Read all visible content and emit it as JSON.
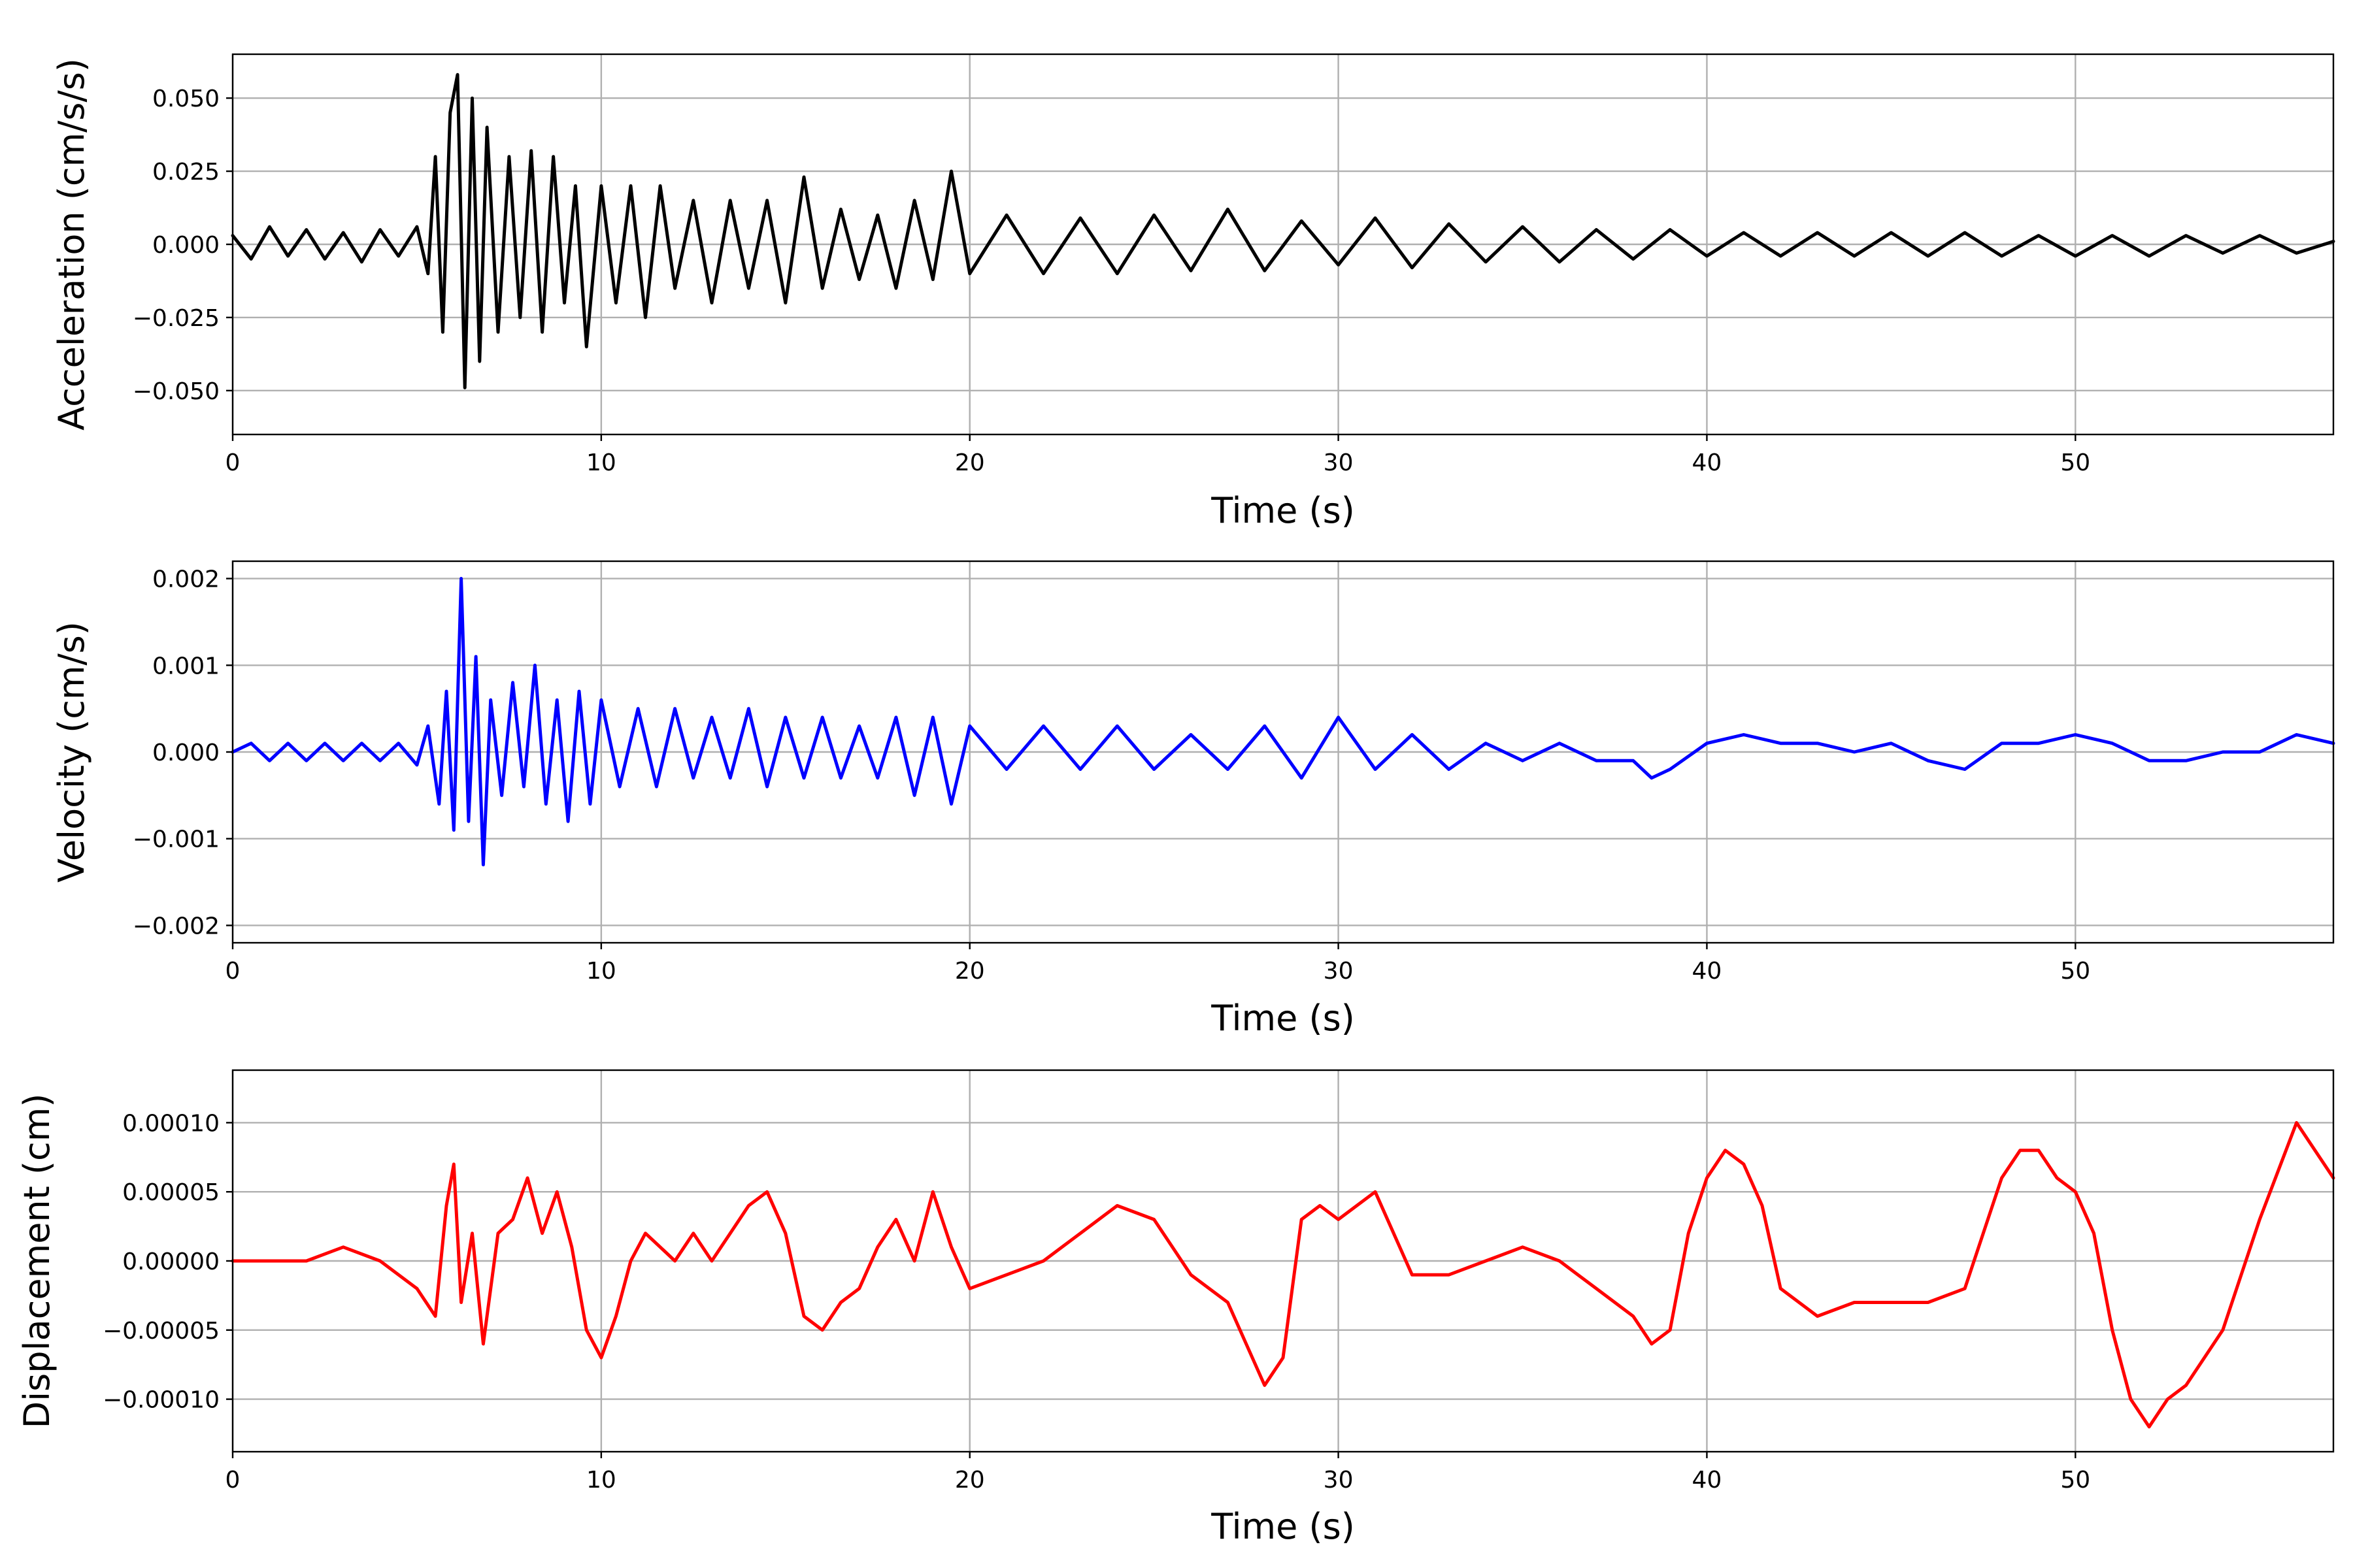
{
  "chart_data": [
    {
      "type": "line",
      "xlabel": "Time (s)",
      "ylabel": "Acceleration (cm/s/s)",
      "xlim": [
        0,
        57
      ],
      "ylim": [
        -0.065,
        0.065
      ],
      "xticks": [
        0,
        10,
        20,
        30,
        40,
        50
      ],
      "xtick_labels": [
        "0",
        "10",
        "20",
        "30",
        "40",
        "50"
      ],
      "yticks": [
        -0.05,
        -0.025,
        0,
        0.025,
        0.05
      ],
      "ytick_labels": [
        "−0.050",
        "−0.025",
        "0.000",
        "0.025",
        "0.050"
      ],
      "grid": true,
      "series": [
        {
          "color": "#000000",
          "x": [
            0,
            0.5,
            1,
            1.5,
            2,
            2.5,
            3,
            3.5,
            4,
            4.5,
            5,
            5.3,
            5.5,
            5.7,
            5.9,
            6.1,
            6.3,
            6.5,
            6.7,
            6.9,
            7.2,
            7.5,
            7.8,
            8.1,
            8.4,
            8.7,
            9,
            9.3,
            9.6,
            10,
            10.4,
            10.8,
            11.2,
            11.6,
            12,
            12.5,
            13,
            13.5,
            14,
            14.5,
            15,
            15.5,
            16,
            16.5,
            17,
            17.5,
            18,
            18.5,
            19,
            19.5,
            20,
            21,
            22,
            23,
            24,
            25,
            26,
            27,
            28,
            29,
            30,
            31,
            32,
            33,
            34,
            35,
            36,
            37,
            38,
            39,
            40,
            41,
            42,
            43,
            44,
            45,
            46,
            47,
            48,
            49,
            50,
            51,
            52,
            53,
            54,
            55,
            56,
            57
          ],
          "y": [
            0.003,
            -0.005,
            0.006,
            -0.004,
            0.005,
            -0.005,
            0.004,
            -0.006,
            0.005,
            -0.004,
            0.006,
            -0.01,
            0.03,
            -0.03,
            0.045,
            0.058,
            -0.049,
            0.05,
            -0.04,
            0.04,
            -0.03,
            0.03,
            -0.025,
            0.032,
            -0.03,
            0.03,
            -0.02,
            0.02,
            -0.035,
            0.02,
            -0.02,
            0.02,
            -0.025,
            0.02,
            -0.015,
            0.015,
            -0.02,
            0.015,
            -0.015,
            0.015,
            -0.02,
            0.023,
            -0.015,
            0.012,
            -0.012,
            0.01,
            -0.015,
            0.015,
            -0.012,
            0.025,
            -0.01,
            0.01,
            -0.01,
            0.009,
            -0.01,
            0.01,
            -0.009,
            0.012,
            -0.009,
            0.008,
            -0.007,
            0.009,
            -0.008,
            0.007,
            -0.006,
            0.006,
            -0.006,
            0.005,
            -0.005,
            0.005,
            -0.004,
            0.004,
            -0.004,
            0.004,
            -0.004,
            0.004,
            -0.004,
            0.004,
            -0.004,
            0.003,
            -0.004,
            0.003,
            -0.004,
            0.003,
            -0.003,
            0.003,
            -0.003,
            0.001
          ]
        }
      ]
    },
    {
      "type": "line",
      "xlabel": "Time (s)",
      "ylabel": "Velocity (cm/s)",
      "xlim": [
        0,
        57
      ],
      "ylim": [
        -0.0022,
        0.0022
      ],
      "xticks": [
        0,
        10,
        20,
        30,
        40,
        50
      ],
      "xtick_labels": [
        "0",
        "10",
        "20",
        "30",
        "40",
        "50"
      ],
      "yticks": [
        -0.002,
        -0.001,
        0,
        0.001,
        0.002
      ],
      "ytick_labels": [
        "−0.002",
        "−0.001",
        "0.000",
        "0.001",
        "0.002"
      ],
      "grid": true,
      "series": [
        {
          "color": "#0000ff",
          "x": [
            0,
            0.5,
            1,
            1.5,
            2,
            2.5,
            3,
            3.5,
            4,
            4.5,
            5,
            5.3,
            5.6,
            5.8,
            6,
            6.2,
            6.4,
            6.6,
            6.8,
            7,
            7.3,
            7.6,
            7.9,
            8.2,
            8.5,
            8.8,
            9.1,
            9.4,
            9.7,
            10,
            10.5,
            11,
            11.5,
            12,
            12.5,
            13,
            13.5,
            14,
            14.5,
            15,
            15.5,
            16,
            16.5,
            17,
            17.5,
            18,
            18.5,
            19,
            19.5,
            20,
            21,
            22,
            23,
            24,
            25,
            26,
            27,
            28,
            29,
            30,
            31,
            32,
            33,
            34,
            35,
            36,
            37,
            38,
            38.5,
            39,
            40,
            41,
            42,
            43,
            44,
            45,
            46,
            47,
            48,
            49,
            50,
            51,
            52,
            53,
            54,
            55,
            56,
            57
          ],
          "y": [
            0,
            0.0001,
            -0.0001,
            0.0001,
            -0.0001,
            0.0001,
            -0.0001,
            0.0001,
            -0.0001,
            0.0001,
            -0.00015,
            0.0003,
            -0.0006,
            0.0007,
            -0.0009,
            0.002,
            -0.0008,
            0.0011,
            -0.0013,
            0.0006,
            -0.0005,
            0.0008,
            -0.0004,
            0.001,
            -0.0006,
            0.0006,
            -0.0008,
            0.0007,
            -0.0006,
            0.0006,
            -0.0004,
            0.0005,
            -0.0004,
            0.0005,
            -0.0003,
            0.0004,
            -0.0003,
            0.0005,
            -0.0004,
            0.0004,
            -0.0003,
            0.0004,
            -0.0003,
            0.0003,
            -0.0003,
            0.0004,
            -0.0005,
            0.0004,
            -0.0006,
            0.0003,
            -0.0002,
            0.0003,
            -0.0002,
            0.0003,
            -0.0002,
            0.0002,
            -0.0002,
            0.0003,
            -0.0003,
            0.0004,
            -0.0002,
            0.0002,
            -0.0002,
            0.0001,
            -0.0001,
            0.0001,
            -0.0001,
            -0.0001,
            -0.0003,
            -0.0002,
            0.0001,
            0.0002,
            0.0001,
            0.0001,
            0,
            0.0001,
            -0.0001,
            -0.0002,
            0.0001,
            0.0001,
            0.0002,
            0.0001,
            -0.0001,
            -0.0001,
            0,
            0,
            0.0002,
            0.0001
          ]
        }
      ]
    },
    {
      "type": "line",
      "xlabel": "Time (s)",
      "ylabel": "Displacement (cm)",
      "xlim": [
        0,
        57
      ],
      "ylim": [
        -0.000138,
        0.000138
      ],
      "xticks": [
        0,
        10,
        20,
        30,
        40,
        50
      ],
      "xtick_labels": [
        "0",
        "10",
        "20",
        "30",
        "40",
        "50"
      ],
      "yticks": [
        -0.0001,
        -5e-05,
        0,
        5e-05,
        0.0001
      ],
      "ytick_labels": [
        "−0.00010",
        "−0.00005",
        "0.00000",
        "0.00005",
        "0.00010"
      ],
      "grid": true,
      "series": [
        {
          "color": "#ff0000",
          "x": [
            0,
            1,
            2,
            3,
            4,
            5,
            5.5,
            5.8,
            6,
            6.2,
            6.5,
            6.8,
            7.2,
            7.6,
            8,
            8.4,
            8.8,
            9.2,
            9.6,
            10,
            10.4,
            10.8,
            11.2,
            11.6,
            12,
            12.5,
            13,
            13.5,
            14,
            14.5,
            15,
            15.5,
            16,
            16.5,
            17,
            17.5,
            18,
            18.5,
            19,
            19.5,
            20,
            21,
            22,
            23,
            24,
            25,
            26,
            27,
            28,
            28.5,
            29,
            29.5,
            30,
            31,
            32,
            33,
            34,
            35,
            36,
            37,
            38,
            38.5,
            39,
            39.5,
            40,
            40.5,
            41,
            41.5,
            42,
            43,
            44,
            45,
            46,
            47,
            48,
            48.5,
            49,
            49.5,
            50,
            50.5,
            51,
            51.5,
            52,
            52.5,
            53,
            54,
            55,
            56,
            57
          ],
          "y": [
            0,
            0,
            0,
            1e-05,
            0,
            -2e-05,
            -4e-05,
            4e-05,
            7e-05,
            -3e-05,
            2e-05,
            -6e-05,
            2e-05,
            3e-05,
            6e-05,
            2e-05,
            5e-05,
            1e-05,
            -5e-05,
            -7e-05,
            -4e-05,
            0,
            2e-05,
            1e-05,
            0,
            2e-05,
            0,
            2e-05,
            4e-05,
            5e-05,
            2e-05,
            -4e-05,
            -5e-05,
            -3e-05,
            -2e-05,
            1e-05,
            3e-05,
            0,
            5e-05,
            1e-05,
            -2e-05,
            -1e-05,
            0,
            2e-05,
            4e-05,
            3e-05,
            -1e-05,
            -3e-05,
            -9e-05,
            -7e-05,
            3e-05,
            4e-05,
            3e-05,
            5e-05,
            -1e-05,
            -1e-05,
            0,
            1e-05,
            0,
            -2e-05,
            -4e-05,
            -6e-05,
            -5e-05,
            2e-05,
            6e-05,
            8e-05,
            7e-05,
            4e-05,
            -2e-05,
            -4e-05,
            -3e-05,
            -3e-05,
            -3e-05,
            -2e-05,
            6e-05,
            8e-05,
            8e-05,
            6e-05,
            5e-05,
            2e-05,
            -5e-05,
            -0.0001,
            -0.00012,
            -0.0001,
            -9e-05,
            -5e-05,
            3e-05,
            0.0001,
            6e-05
          ]
        }
      ]
    }
  ]
}
